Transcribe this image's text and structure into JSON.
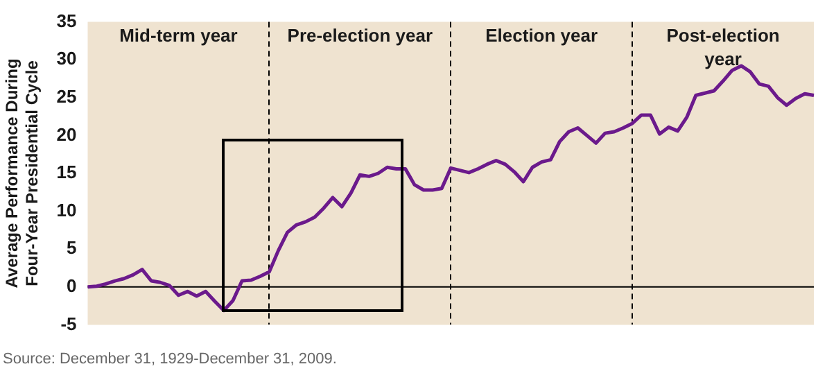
{
  "chart_data": {
    "type": "line",
    "ylabel": "Average Performance During Four-Year Presidential Cycle",
    "categories": [
      null,
      null,
      null,
      null,
      null,
      null,
      null,
      null,
      null,
      null,
      null,
      null,
      null,
      null,
      null,
      null,
      null,
      null,
      null,
      null,
      null,
      null,
      null,
      null,
      null,
      null,
      null,
      null,
      null,
      null,
      null,
      null,
      null,
      null,
      null,
      null,
      null,
      null,
      null,
      null,
      null,
      null,
      null,
      null,
      null,
      null,
      null,
      null,
      null,
      null,
      null,
      null,
      null,
      null,
      null,
      null,
      null,
      null,
      null,
      null,
      null,
      null,
      null,
      null,
      null,
      null,
      null,
      null,
      null,
      null,
      null,
      null,
      null,
      null,
      null,
      null,
      null,
      null,
      null,
      null,
      null
    ],
    "ylim": [
      -5,
      35
    ],
    "yticks": [
      -5,
      0,
      5,
      10,
      15,
      20,
      25,
      30,
      35
    ],
    "tick_labels": "y",
    "grid": "x",
    "legend": false,
    "marker": "none",
    "line_style": "solid",
    "series": [
      {
        "color": "#6b1a8c",
        "values": [
          0,
          0.1,
          0.4,
          0.8,
          1.1,
          1.6,
          2.3,
          0.8,
          0.6,
          0.2,
          -1.1,
          -0.6,
          -1.2,
          -0.6,
          -1.9,
          -3.1,
          -1.8,
          0.8,
          0.9,
          1.4,
          2.0,
          4.8,
          7.2,
          8.2,
          8.6,
          9.2,
          10.4,
          11.8,
          10.6,
          12.4,
          14.8,
          14.6,
          15.0,
          15.8,
          15.6,
          15.6,
          13.5,
          12.8,
          12.8,
          13.0,
          15.7,
          15.4,
          15.1,
          15.6,
          16.2,
          16.7,
          16.2,
          15.2,
          13.9,
          15.8,
          16.5,
          16.8,
          19.2,
          20.5,
          21.0,
          20.0,
          19.0,
          20.3,
          20.5,
          21.0,
          21.6,
          22.7,
          22.7,
          20.2,
          21.1,
          20.6,
          22.4,
          25.3,
          25.6,
          25.9,
          27.2,
          28.6,
          29.2,
          28.4,
          26.8,
          26.5,
          25.0,
          24.0,
          24.9,
          25.5,
          25.3
        ]
      }
    ],
    "ref_lines": [
      {
        "axis": "y",
        "value": 0,
        "color": "#000000",
        "line_style": "solid"
      }
    ],
    "annotations": [
      "Mid-term year",
      "Pre-election year",
      "Election year",
      "Post-election year",
      "Source: December 31, 1929-December 31, 2009."
    ]
  }
}
